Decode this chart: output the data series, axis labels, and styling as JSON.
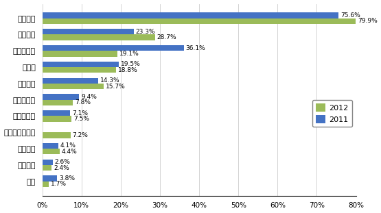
{
  "categories": [
    "产品质量",
    "供货能力",
    "产品性价比",
    "交货期",
    "技术支持",
    "技术领先性",
    "品牌知名度",
    "小批量供应服务",
    "产品组合",
    "付款条件",
    "信誉"
  ],
  "values_2012": [
    79.9,
    28.7,
    19.1,
    18.8,
    15.7,
    7.8,
    7.5,
    7.2,
    4.4,
    2.4,
    1.7
  ],
  "values_2011": [
    75.6,
    23.3,
    36.1,
    19.5,
    14.3,
    9.4,
    7.1,
    0,
    4.1,
    2.6,
    3.8
  ],
  "color_2012": "#9bbb59",
  "color_2011": "#4472c4",
  "xlim": [
    0,
    80
  ],
  "xtick_vals": [
    0,
    10,
    20,
    30,
    40,
    50,
    60,
    70,
    80
  ],
  "xtick_labels": [
    "0%",
    "10%",
    "20%",
    "30%",
    "40%",
    "50%",
    "60%",
    "70%",
    "80%"
  ],
  "legend_labels": [
    "2012",
    "2011"
  ],
  "bar_height": 0.35,
  "label_fontsize": 6.5,
  "ytick_fontsize": 8.0,
  "xtick_fontsize": 7.5
}
